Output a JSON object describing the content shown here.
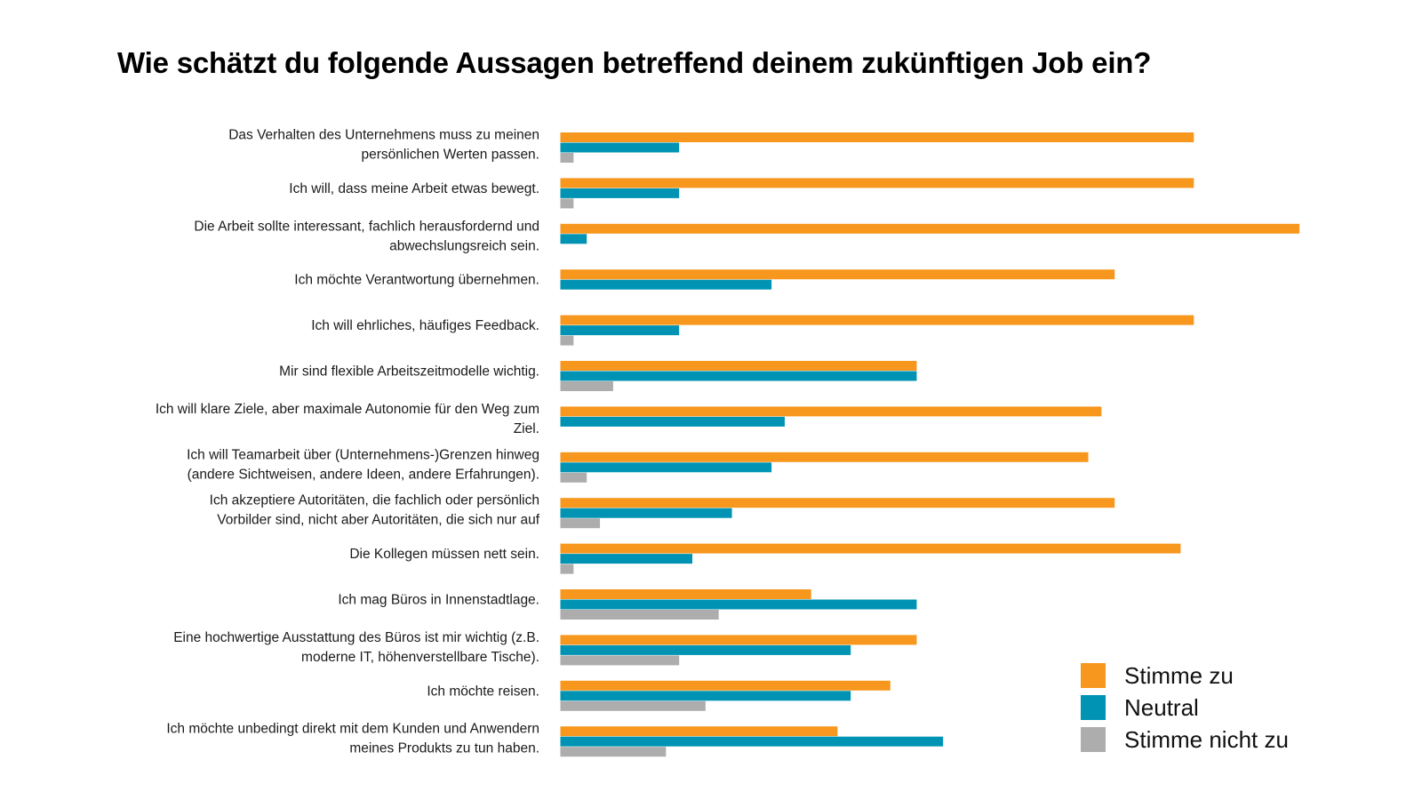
{
  "chart_data": {
    "type": "bar",
    "orientation": "horizontal",
    "title": "Wie schätzt du folgende Aussagen betreffend deinem zukünftigen Job ein?",
    "xlabel": "",
    "ylabel": "",
    "xlim": [
      0,
      56
    ],
    "grid": false,
    "axes_visible": false,
    "legend_position": "bottom-right",
    "categories": [
      [
        "Das Verhalten des Unternehmens muss zu meinen",
        "persönlichen Werten passen."
      ],
      [
        "Ich will, dass meine Arbeit etwas bewegt."
      ],
      [
        "Die Arbeit sollte interessant, fachlich herausfordernd und",
        "abwechslungsreich sein."
      ],
      [
        "Ich möchte Verantwortung übernehmen."
      ],
      [
        "Ich will ehrliches, häufiges Feedback."
      ],
      [
        "Mir sind flexible Arbeitszeitmodelle wichtig."
      ],
      [
        "Ich will klare Ziele, aber maximale Autonomie für den Weg zum",
        "Ziel."
      ],
      [
        "Ich will Teamarbeit über (Unternehmens-)Grenzen hinweg",
        "(andere Sichtweisen, andere Ideen, andere Erfahrungen)."
      ],
      [
        "Ich akzeptiere Autoritäten, die fachlich oder persönlich",
        "Vorbilder sind, nicht aber Autoritäten, die sich nur auf"
      ],
      [
        "Die Kollegen müssen nett sein."
      ],
      [
        "Ich mag Büros in Innenstadtlage."
      ],
      [
        "Eine hochwertige Ausstattung des Büros ist mir wichtig (z.B.",
        "moderne IT, höhenverstellbare Tische)."
      ],
      [
        "Ich möchte reisen."
      ],
      [
        "Ich möchte unbedingt direkt mit dem Kunden und Anwendern",
        "meines Produkts zu tun haben."
      ]
    ],
    "series": [
      {
        "name": "Stimme zu",
        "color": "#F7971E",
        "values": [
          48,
          48,
          56,
          42,
          48,
          27,
          41,
          40,
          42,
          47,
          19,
          27,
          25,
          21
        ]
      },
      {
        "name": "Neutral",
        "color": "#0093B3",
        "values": [
          9,
          9,
          2,
          16,
          9,
          27,
          17,
          16,
          13,
          10,
          27,
          22,
          22,
          29
        ]
      },
      {
        "name": "Stimme nicht zu",
        "color": "#ADADAD",
        "values": [
          1,
          1,
          0,
          0,
          1,
          4,
          0,
          2,
          3,
          1,
          12,
          9,
          11,
          8
        ]
      }
    ]
  }
}
